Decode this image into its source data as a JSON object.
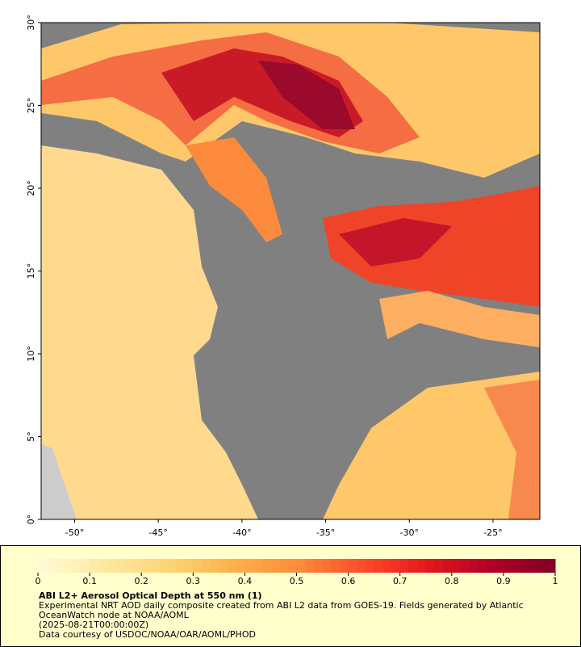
{
  "map": {
    "type": "map",
    "xlim": [
      -52,
      -22.2
    ],
    "ylim": [
      0,
      30
    ],
    "xticks": [
      {
        "value": -50,
        "label": "-50°"
      },
      {
        "value": -45,
        "label": "-45°"
      },
      {
        "value": -40,
        "label": "-40°"
      },
      {
        "value": -35,
        "label": "-35°"
      },
      {
        "value": -30,
        "label": "-30°"
      },
      {
        "value": -25,
        "label": "-25°"
      }
    ],
    "yticks": [
      {
        "value": 0,
        "label": "0°"
      },
      {
        "value": 5,
        "label": "5°"
      },
      {
        "value": 10,
        "label": "10°"
      },
      {
        "value": 15,
        "label": "15°"
      },
      {
        "value": 20,
        "label": "20°"
      },
      {
        "value": 25,
        "label": "25°"
      },
      {
        "value": 30,
        "label": "30°"
      }
    ]
  },
  "legend": {
    "colorbar": {
      "range": [
        0,
        1
      ],
      "ticks": [
        0,
        0.1,
        0.2,
        0.3,
        0.4,
        0.5,
        0.6,
        0.7,
        0.8,
        0.9,
        1
      ],
      "colors": [
        "#fffbd6",
        "#fee9a3",
        "#fed577",
        "#feb24c",
        "#fd8d3c",
        "#fc4e2a",
        "#e31a1c",
        "#b10026",
        "#800026"
      ]
    },
    "title": "ABI L2+ Aerosol Optical Depth at 550 nm (1)",
    "description": "Experimental NRT AOD daily composite created from ABI L2 data from GOES-19. Fields generated by Atlantic OceanWatch node at NOAA/AOML",
    "time": "(2025-08-21T00:00:00Z)",
    "credit": "Data courtesy of USDOC/NOAA/OAR/AOML/PHOD"
  }
}
